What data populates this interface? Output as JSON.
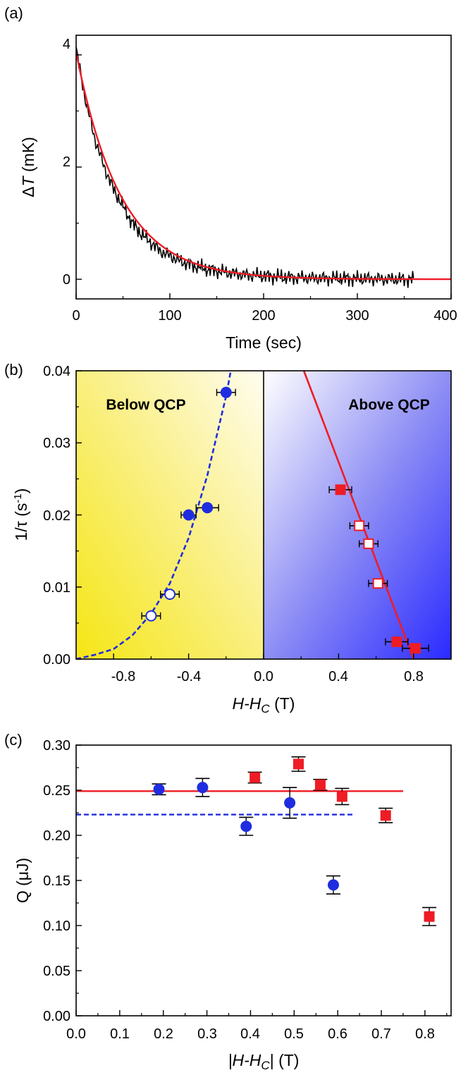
{
  "chart_data": [
    {
      "panel_label": "(a)",
      "type": "line",
      "xlabel": "Time (sec)",
      "ylabel_prefix": "Δ",
      "ylabel_var": "T",
      "ylabel_unit": " (mK)",
      "xlim": [
        0,
        400
      ],
      "ylim": [
        -0.35,
        4.35
      ],
      "xticks": [
        "0",
        "100",
        "200",
        "300",
        "400"
      ],
      "yticks": [
        "0",
        "2",
        "4"
      ],
      "series": [
        {
          "role": "data",
          "color": "#000000",
          "x": [
            0,
            10,
            20,
            30,
            40,
            50,
            60,
            70,
            80,
            90,
            100,
            110,
            120,
            130,
            140,
            150,
            160,
            170,
            180,
            190,
            200,
            210,
            220,
            230,
            240,
            250,
            260,
            270,
            280,
            290,
            300,
            310,
            320,
            330,
            340,
            350,
            360
          ],
          "y": [
            4.1,
            3.2,
            2.5,
            2.0,
            1.6,
            1.3,
            1.0,
            0.8,
            0.65,
            0.5,
            0.42,
            0.33,
            0.27,
            0.22,
            0.18,
            0.15,
            0.12,
            0.1,
            0.08,
            0.07,
            0.06,
            0.05,
            0.04,
            0.03,
            0.03,
            0.02,
            0.02,
            0.02,
            0.02,
            0.01,
            0.01,
            0.01,
            0.01,
            0.0,
            0.0,
            0.0,
            0.0
          ]
        },
        {
          "role": "fit",
          "color": "#ee1c25",
          "model": "exponential",
          "amplitude": 4.05,
          "rate": 0.021
        }
      ]
    },
    {
      "panel_label": "(b)",
      "type": "scatter",
      "xlabel_var": "H-H",
      "xlabel_sub": "C",
      "xlabel_unit": " (T)",
      "ylabel_main": "1/τ (s",
      "ylabel_sup": "-1",
      "ylabel_tail": ")",
      "xlim": [
        -1.0,
        1.0
      ],
      "ylim": [
        0.0,
        0.04
      ],
      "xticks": [
        "-0.8",
        "-0.4",
        "0.0",
        "0.4",
        "0.8"
      ],
      "yticks": [
        "0.00",
        "0.01",
        "0.02",
        "0.03",
        "0.04"
      ],
      "annotations": [
        "Below QCP",
        "Above QCP"
      ],
      "series": [
        {
          "marker": "circle",
          "filled": true,
          "color": "#1f2de0",
          "x": [
            -0.4,
            -0.3,
            -0.2
          ],
          "y": [
            0.02,
            0.021,
            0.037
          ],
          "xerr": [
            0.04,
            0.06,
            0.05
          ]
        },
        {
          "marker": "circle",
          "filled": false,
          "color": "#1f2de0",
          "x": [
            -0.6,
            -0.5
          ],
          "y": [
            0.006,
            0.009
          ],
          "xerr": [
            0.05,
            0.05
          ]
        },
        {
          "marker": "square",
          "filled": true,
          "color": "#ee1c25",
          "x": [
            0.41,
            0.71,
            0.81
          ],
          "y": [
            0.0235,
            0.0024,
            0.0015
          ],
          "xerr": [
            0.06,
            0.06,
            0.07
          ]
        },
        {
          "marker": "square",
          "filled": false,
          "color": "#ee1c25",
          "x": [
            0.51,
            0.56,
            0.61
          ],
          "y": [
            0.0185,
            0.016,
            0.0105
          ],
          "xerr": [
            0.05,
            0.05,
            0.05
          ]
        },
        {
          "role": "fit-below",
          "style": "dashed",
          "color": "#1f2de0",
          "x": [
            -1.0,
            -0.9,
            -0.8,
            -0.7,
            -0.6,
            -0.5,
            -0.4,
            -0.3,
            -0.2,
            -0.15
          ],
          "y": [
            0.0,
            0.0006,
            0.0014,
            0.0033,
            0.0063,
            0.0105,
            0.0168,
            0.0255,
            0.0365,
            0.0435
          ]
        },
        {
          "role": "fit-above",
          "style": "solid",
          "color": "#ee1c25",
          "x": [
            0.2,
            0.8
          ],
          "y": [
            0.041,
            0.0
          ]
        }
      ]
    },
    {
      "panel_label": "(c)",
      "type": "scatter",
      "xlabel_pre": "|H-H",
      "xlabel_sub": "C",
      "xlabel_post": "| (T)",
      "ylabel": "Q (μJ)",
      "xlim": [
        0.0,
        0.86
      ],
      "ylim": [
        0.0,
        0.3
      ],
      "xticks": [
        "0.0",
        "0.1",
        "0.2",
        "0.3",
        "0.4",
        "0.5",
        "0.6",
        "0.7",
        "0.8"
      ],
      "yticks": [
        "0.00",
        "0.05",
        "0.10",
        "0.15",
        "0.20",
        "0.25",
        "0.30"
      ],
      "series": [
        {
          "marker": "circle",
          "filled": true,
          "color": "#1f2de0",
          "x": [
            0.19,
            0.29,
            0.39,
            0.49,
            0.59
          ],
          "y": [
            0.251,
            0.253,
            0.21,
            0.236,
            0.145
          ],
          "yerr": [
            0.006,
            0.01,
            0.01,
            0.017,
            0.01
          ]
        },
        {
          "marker": "square",
          "filled": true,
          "color": "#ee1c25",
          "x": [
            0.41,
            0.51,
            0.56,
            0.61,
            0.71,
            0.81
          ],
          "y": [
            0.264,
            0.279,
            0.256,
            0.243,
            0.222,
            0.11
          ],
          "yerr": [
            0.006,
            0.008,
            0.006,
            0.009,
            0.008,
            0.01
          ]
        },
        {
          "role": "mean-red",
          "style": "solid",
          "color": "#ee1c25",
          "x": [
            0.0,
            0.75
          ],
          "y": [
            0.249,
            0.249
          ]
        },
        {
          "role": "mean-blue",
          "style": "dashed",
          "color": "#1f2de0",
          "x": [
            0.0,
            0.64
          ],
          "y": [
            0.223,
            0.223
          ]
        }
      ]
    }
  ]
}
